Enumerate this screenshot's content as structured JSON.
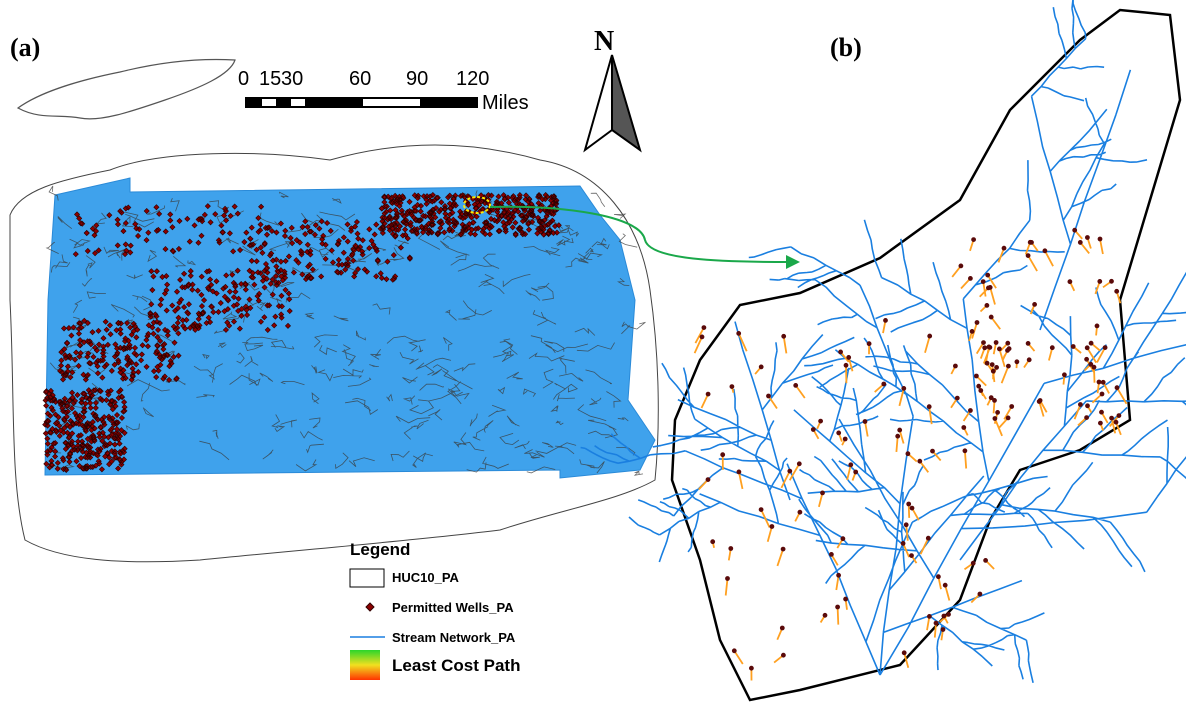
{
  "panels": {
    "a": {
      "label": "(a)"
    },
    "b": {
      "label": "(b)"
    }
  },
  "scale_bar": {
    "labels": [
      "0",
      "15",
      "30",
      "60",
      "90",
      "120"
    ],
    "unit": "Miles"
  },
  "north_arrow": {
    "label": "N"
  },
  "legend": {
    "title": "Legend",
    "items": [
      "HUC10_PA",
      "Permitted Wells_PA",
      "Stream Network_PA",
      "Least Cost Path"
    ]
  }
}
